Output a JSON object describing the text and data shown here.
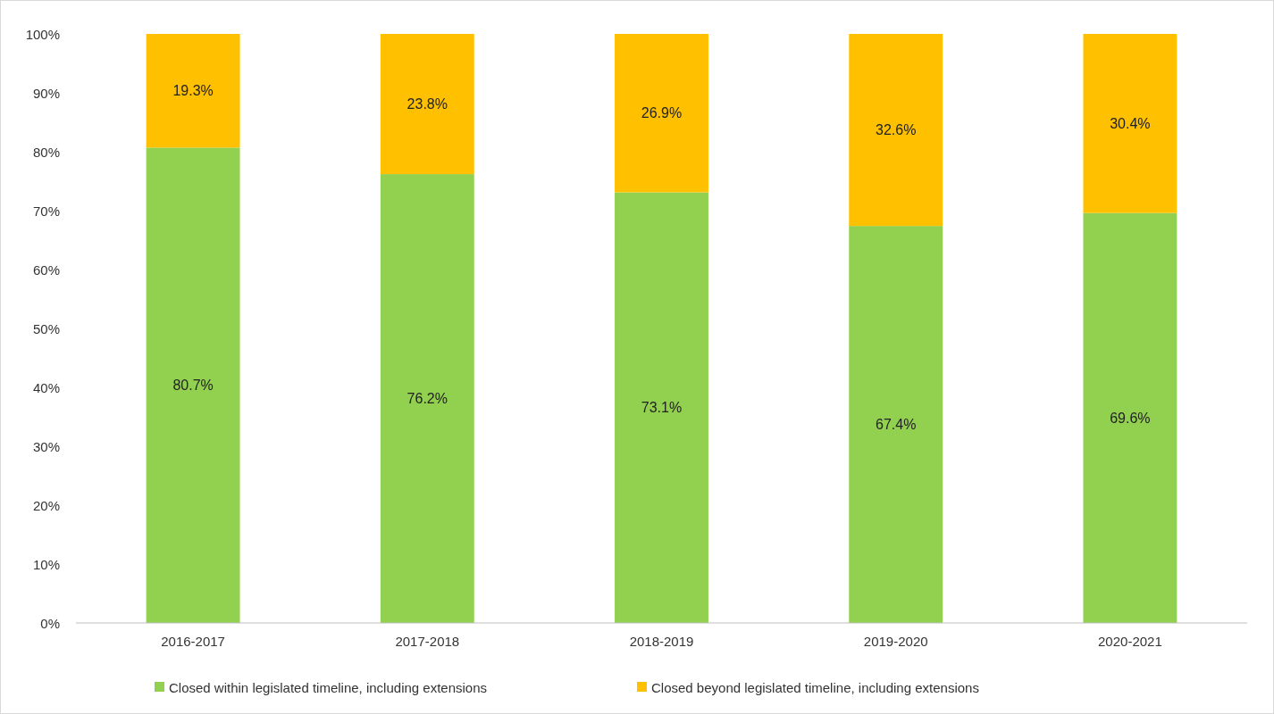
{
  "chart_data": {
    "type": "bar",
    "stacked": true,
    "categories": [
      "2016-2017",
      "2017-2018",
      "2018-2019",
      "2019-2020",
      "2020-2021"
    ],
    "series": [
      {
        "name": "Closed within legislated timeline, including extensions",
        "color": "#92d050",
        "values": [
          80.7,
          76.2,
          73.1,
          67.4,
          69.6
        ],
        "value_labels": [
          "80.7%",
          "76.2%",
          "73.1%",
          "67.4%",
          "69.6%"
        ]
      },
      {
        "name": "Closed beyond legislated timeline, including extensions",
        "color": "#ffc000",
        "values": [
          19.3,
          23.8,
          26.9,
          32.6,
          30.4
        ],
        "value_labels": [
          "19.3%",
          "23.8%",
          "26.9%",
          "32.6%",
          "30.4%"
        ]
      }
    ],
    "ylim": [
      0,
      100
    ],
    "yticks": [
      {
        "value": 0,
        "label": "0%"
      },
      {
        "value": 10,
        "label": "10%"
      },
      {
        "value": 20,
        "label": "20%"
      },
      {
        "value": 30,
        "label": "30%"
      },
      {
        "value": 40,
        "label": "40%"
      },
      {
        "value": 50,
        "label": "50%"
      },
      {
        "value": 60,
        "label": "60%"
      },
      {
        "value": 70,
        "label": "70%"
      },
      {
        "value": 80,
        "label": "80%"
      },
      {
        "value": 90,
        "label": "90%"
      },
      {
        "value": 100,
        "label": "100%"
      }
    ],
    "legend": "bottom"
  }
}
